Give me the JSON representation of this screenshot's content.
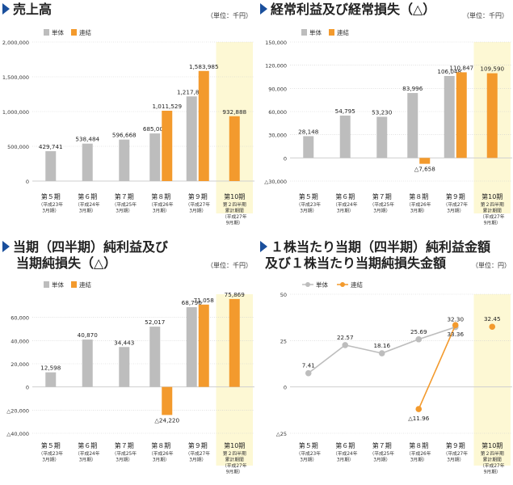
{
  "colors": {
    "tanutai": "#bdbdbd",
    "renketsu": "#f39a2d",
    "highlight": "#fdf8d4",
    "grid": "#cfcfcf",
    "axis": "#666666",
    "title_icon": "#1a4f9c"
  },
  "legend": {
    "single": "単体",
    "consolidated": "連結"
  },
  "periods": [
    {
      "label": "第５期",
      "sub": [
        "（平成23年",
        "3月期）"
      ]
    },
    {
      "label": "第６期",
      "sub": [
        "（平成24年",
        "3月期）"
      ]
    },
    {
      "label": "第７期",
      "sub": [
        "（平成25年",
        "3月期）"
      ]
    },
    {
      "label": "第８期",
      "sub": [
        "（平成26年",
        "3月期）"
      ]
    },
    {
      "label": "第９期",
      "sub": [
        "（平成27年",
        "3月期）"
      ]
    },
    {
      "label": "第10期",
      "sub": [
        "第２四半期",
        "累計期間",
        "（平成27年",
        "9月期）"
      ]
    }
  ],
  "chart_data": [
    {
      "id": "sales",
      "type": "bar",
      "title": [
        "売上高"
      ],
      "unit": "（単位：千円）",
      "ylim": [
        0,
        2000000
      ],
      "yticks": [
        0,
        500000,
        1000000,
        1500000,
        2000000
      ],
      "ytick_labels": [
        "0",
        "500,000",
        "1,000,000",
        "1,500,000",
        "2,000,000"
      ],
      "series": [
        {
          "name": "単体",
          "values": [
            429741,
            538484,
            596668,
            685006,
            1217818,
            null
          ],
          "labels": [
            "429,741",
            "538,484",
            "596,668",
            "685,006",
            "1,217,818",
            ""
          ]
        },
        {
          "name": "連結",
          "values": [
            null,
            null,
            null,
            1011529,
            1583985,
            932888
          ],
          "labels": [
            "",
            "",
            "",
            "1,011,529",
            "1,583,985",
            "932,888"
          ]
        }
      ]
    },
    {
      "id": "ordinary",
      "type": "bar",
      "title": [
        "経常利益及び経常損失（△）"
      ],
      "unit": "（単位：千円）",
      "ylim": [
        -30000,
        150000
      ],
      "yticks": [
        -30000,
        0,
        30000,
        60000,
        90000,
        120000,
        150000
      ],
      "ytick_labels": [
        "△30,000",
        "0",
        "30,000",
        "60,000",
        "90,000",
        "120,000",
        "150,000"
      ],
      "series": [
        {
          "name": "単体",
          "values": [
            28148,
            54795,
            53230,
            83996,
            106048,
            null
          ],
          "labels": [
            "28,148",
            "54,795",
            "53,230",
            "83,996",
            "106,048",
            ""
          ]
        },
        {
          "name": "連結",
          "values": [
            null,
            null,
            null,
            -7658,
            110847,
            109590
          ],
          "labels": [
            "",
            "",
            "",
            "△7,658",
            "110,847",
            "109,590"
          ]
        }
      ]
    },
    {
      "id": "net",
      "type": "bar",
      "title": [
        "当期（四半期）純利益及び",
        "当期純損失（△）"
      ],
      "unit": "（単位：千円）",
      "ylim": [
        -40000,
        80000
      ],
      "yticks": [
        -40000,
        -20000,
        0,
        20000,
        40000,
        60000
      ],
      "ytick_labels": [
        "△40,000",
        "△20,000",
        "0",
        "20,000",
        "40,000",
        "60,000"
      ],
      "series": [
        {
          "name": "単体",
          "values": [
            12598,
            40870,
            34443,
            52017,
            68796,
            null
          ],
          "labels": [
            "12,598",
            "40,870",
            "34,443",
            "52,017",
            "68,796",
            ""
          ]
        },
        {
          "name": "連結",
          "values": [
            null,
            null,
            null,
            -24220,
            71058,
            75869
          ],
          "labels": [
            "",
            "",
            "",
            "△24,220",
            "71,058",
            "75,869"
          ]
        }
      ]
    },
    {
      "id": "eps",
      "type": "line",
      "title": [
        "１株当たり当期（四半期）純利益金額",
        "及び１株当たり当期純損失金額"
      ],
      "unit": "（単位：円）",
      "ylim": [
        -25,
        50
      ],
      "yticks": [
        -25,
        0,
        25,
        50
      ],
      "ytick_labels": [
        "△25",
        "0",
        "25",
        "50"
      ],
      "series": [
        {
          "name": "単体",
          "values": [
            7.41,
            22.57,
            18.16,
            25.69,
            32.3,
            null
          ],
          "labels": [
            "7.41",
            "22.57",
            "18.16",
            "25.69",
            "32.30",
            ""
          ]
        },
        {
          "name": "連結",
          "values": [
            null,
            null,
            null,
            -11.96,
            33.36,
            32.45
          ],
          "labels": [
            "",
            "",
            "",
            "△11.96",
            "33.36",
            "32.45"
          ]
        }
      ]
    }
  ]
}
